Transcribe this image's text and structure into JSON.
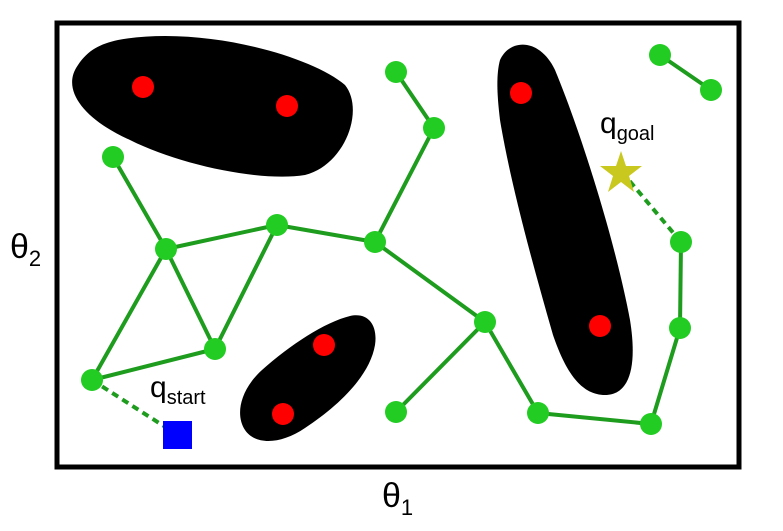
{
  "axes": {
    "x_label": "θ",
    "x_label_sub": "1",
    "y_label": "θ",
    "y_label_sub": "2"
  },
  "start": {
    "label": "q",
    "label_sub": "start",
    "color": "#0000ff",
    "marker": "square"
  },
  "goal": {
    "label": "q",
    "label_sub": "goal",
    "color": "#c8c81e",
    "marker": "star"
  },
  "colors": {
    "obstacle": "#000000",
    "obstacle_point": "#ff0000",
    "roadmap": "#1e9c1e",
    "node": "#22cc22",
    "frame": "#000000"
  },
  "style": {
    "connection_to_start_goal": "dashed"
  }
}
